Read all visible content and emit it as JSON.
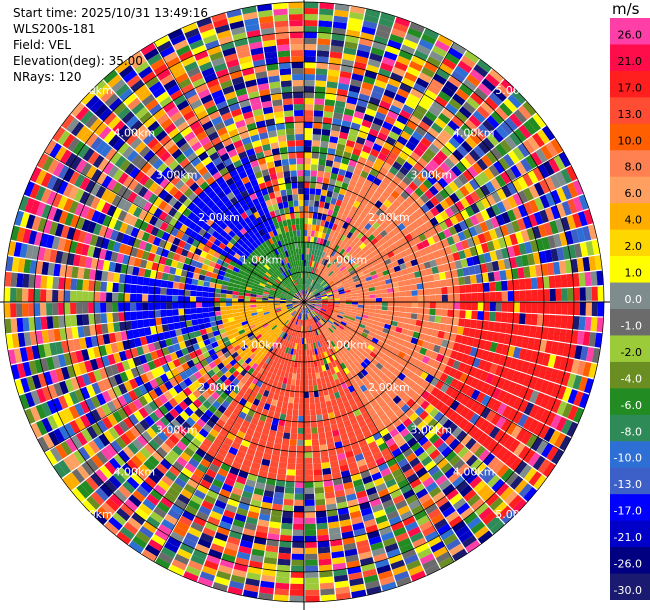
{
  "header": {
    "start_time": "Start time: 2025/10/31 13:49:16",
    "instrument": "WLS200s-181",
    "field": "Field: VEL",
    "elevation": "Elevation(deg): 35.00",
    "nrays": "NRays: 120"
  },
  "colorbar": {
    "unit": "m/s",
    "ticks": [
      "26.0",
      "21.0",
      "17.0",
      "13.0",
      "10.0",
      "8.0",
      "6.0",
      "4.0",
      "2.0",
      "1.0",
      "0.0",
      "-1.0",
      "-2.0",
      "-4.0",
      "-6.0",
      "-8.0",
      "-10.0",
      "-13.0",
      "-17.0",
      "-21.0",
      "-26.0",
      "-30.0"
    ],
    "colors": [
      "#ff3fa8",
      "#ff0d4a",
      "#ff1f1f",
      "#ff4d33",
      "#ff5f00",
      "#ff8050",
      "#ffa060",
      "#ffae00",
      "#ffd700",
      "#ffff00",
      "#7f8c8d",
      "#6b6b6b",
      "#9ccb3a",
      "#6b8e23",
      "#228b22",
      "#2e8b57",
      "#2e6fd6",
      "#3c5fc8",
      "#0000ff",
      "#0000c8",
      "#000080",
      "#1a1a70"
    ]
  },
  "chart_data": {
    "type": "heatmap",
    "projection": "polar PPI",
    "field": "VEL",
    "units": "m/s",
    "nrays": 120,
    "elevation_deg": 35.0,
    "range_rings_km": [
      "1.00km",
      "2.00km",
      "3.00km",
      "4.00km",
      "5.00km"
    ],
    "max_range_km": 5.0,
    "color_limits": [
      -30.0,
      26.0
    ],
    "sectors": [
      {
        "azimuth_deg": [
          20,
          150
        ],
        "range_km": [
          0.5,
          2.6
        ],
        "velocity": 8.0
      },
      {
        "azimuth_deg": [
          85,
          130
        ],
        "range_km": [
          0.3,
          4.6
        ],
        "velocity": 17.0
      },
      {
        "azimuth_deg": [
          150,
          215
        ],
        "range_km": [
          0.3,
          3.0
        ],
        "velocity": 13.0
      },
      {
        "azimuth_deg": [
          200,
          270
        ],
        "range_km": [
          0.3,
          1.4
        ],
        "velocity": 4.0
      },
      {
        "azimuth_deg": [
          255,
          280
        ],
        "range_km": [
          1.5,
          3.0
        ],
        "velocity": -17.0
      },
      {
        "azimuth_deg": [
          300,
          340
        ],
        "range_km": [
          1.2,
          2.5
        ],
        "velocity": -17.0
      },
      {
        "azimuth_deg": [
          280,
          360
        ],
        "range_km": [
          0.2,
          1.4
        ],
        "velocity": -6.0
      },
      {
        "azimuth_deg": [
          0,
          60
        ],
        "range_km": [
          0.2,
          1.0
        ],
        "velocity": -8.0
      },
      {
        "azimuth_deg": [
          100,
          125
        ],
        "range_km": [
          0.2,
          0.6
        ],
        "velocity": 26.0
      }
    ]
  }
}
